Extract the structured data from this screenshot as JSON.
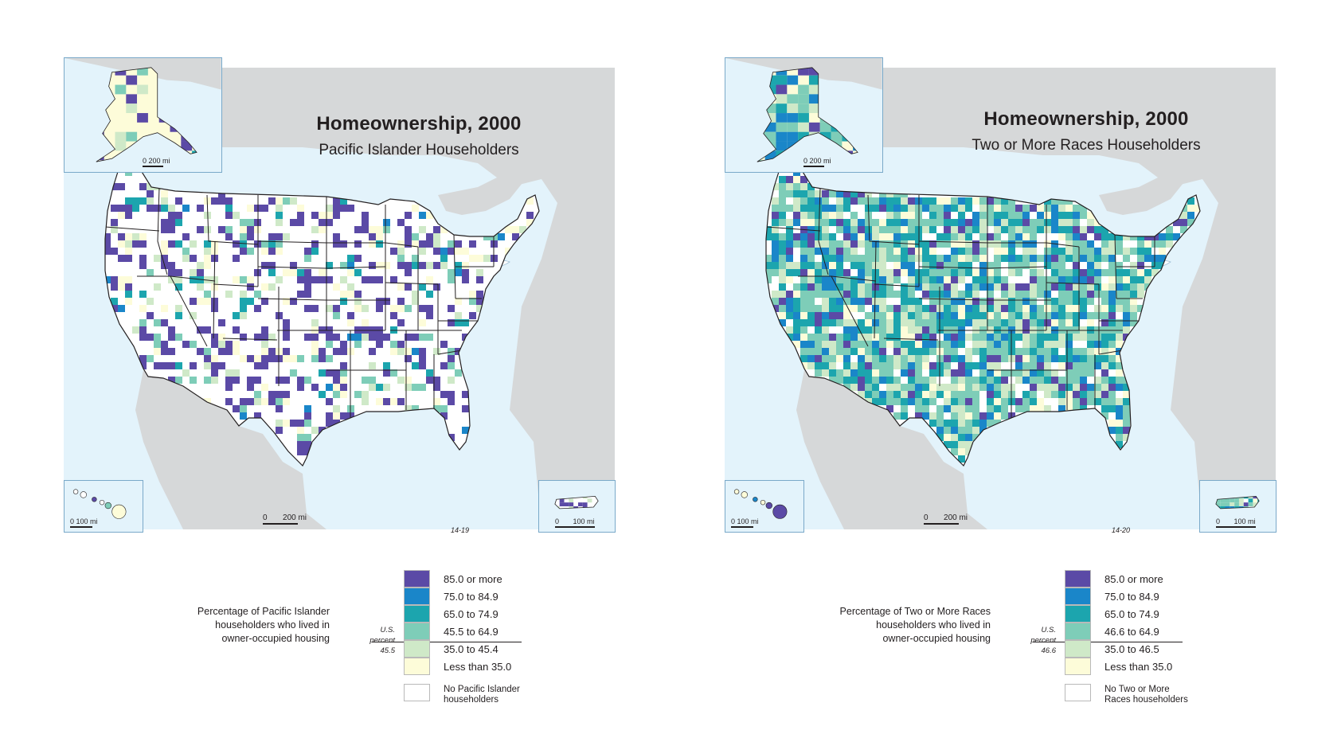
{
  "colors": {
    "water": "#e3f3fb",
    "land_gray": "#d6d8d9",
    "lake": "#ffffff",
    "border": "#231f20",
    "inset_border": "#7aa9c9"
  },
  "categories_colors": [
    "#5b4aa6",
    "#1a86c9",
    "#1ca5ae",
    "#7ecdb8",
    "#cfe9c8",
    "#fdfcd9",
    "#ffffff"
  ],
  "panels": [
    {
      "id": "pacific-islander",
      "title": "Homeownership, 2000",
      "subtitle": "Pacific Islander Householders",
      "scale_main": {
        "zero": "0",
        "label": "200 mi"
      },
      "scale_alaska": {
        "zero": "0",
        "label": "200 mi"
      },
      "scale_hawaii": {
        "zero": "0",
        "label": "100 mi"
      },
      "scale_pr": {
        "zero": "0",
        "label": "100 mi"
      },
      "plate": "14-19",
      "legend_caption": [
        "Percentage of Pacific Islander",
        "householders who lived in",
        "owner-occupied housing"
      ],
      "us_percent": {
        "line1": "U.S.",
        "line2": "percent",
        "value": "45.5"
      },
      "legend": [
        {
          "label": "85.0 or more"
        },
        {
          "label": "75.0 to 84.9"
        },
        {
          "label": "65.0 to 74.9"
        },
        {
          "label": "45.5 to 64.9"
        },
        {
          "label": "35.0 to 45.4"
        },
        {
          "label": "Less than 35.0"
        },
        {
          "label_line1": "No Pacific Islander",
          "label_line2": "householders"
        }
      ],
      "dist": [
        0.16,
        0.01,
        0.03,
        0.05,
        0.05,
        0.06,
        0.64
      ]
    },
    {
      "id": "two-or-more-races",
      "title": "Homeownership, 2000",
      "subtitle": "Two or More Races Householders",
      "scale_main": {
        "zero": "0",
        "label": "200 mi"
      },
      "scale_alaska": {
        "zero": "0",
        "label": "200 mi"
      },
      "scale_hawaii": {
        "zero": "0",
        "label": "100 mi"
      },
      "scale_pr": {
        "zero": "0",
        "label": "100 mi"
      },
      "plate": "14-20",
      "legend_caption": [
        "Percentage of Two or More Races",
        "householders who lived in",
        "owner-occupied housing"
      ],
      "us_percent": {
        "line1": "U.S.",
        "line2": "percent",
        "value": "46.6"
      },
      "legend": [
        {
          "label": "85.0 or more"
        },
        {
          "label": "75.0 to 84.9"
        },
        {
          "label": "65.0 to 74.9"
        },
        {
          "label": "46.6 to 64.9"
        },
        {
          "label": "35.0 to 46.5"
        },
        {
          "label": "Less than 35.0"
        },
        {
          "label_line1": "No Two or More",
          "label_line2": "Races householders"
        }
      ],
      "dist": [
        0.09,
        0.11,
        0.19,
        0.3,
        0.14,
        0.06,
        0.11
      ]
    }
  ]
}
